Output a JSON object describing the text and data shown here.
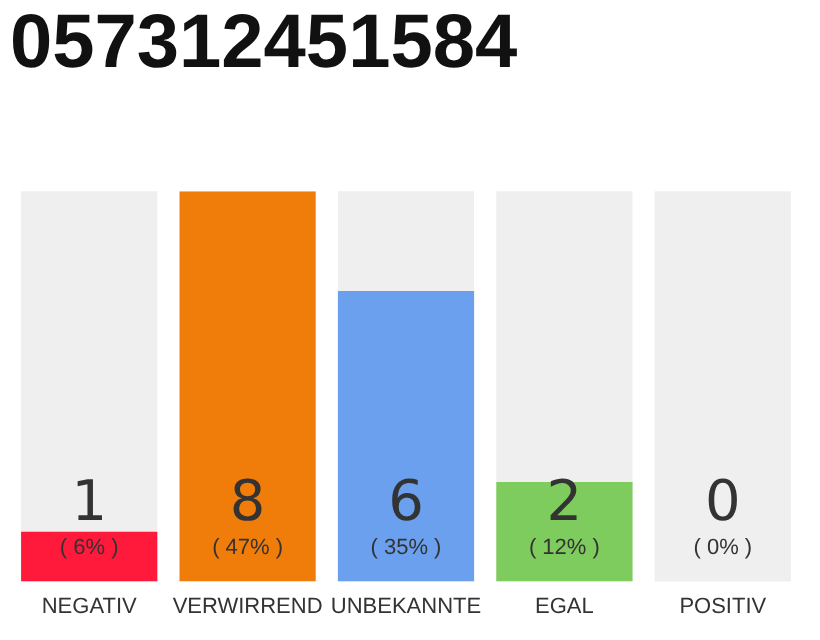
{
  "chart_data": {
    "type": "bar",
    "title": "057312451584",
    "categories": [
      "NEGATIV",
      "VERWIRREND",
      "UNBEKANNTE",
      "EGAL",
      "POSITIV"
    ],
    "values": [
      6,
      47,
      35,
      12,
      0
    ],
    "colors": [
      "#ff1a3c",
      "#f07d0a",
      "#6aa0ee",
      "#7ecb5e",
      "#bbbbbb"
    ],
    "value_labels": [
      "( 6% )",
      "( 47% )",
      "( 35% )",
      "( 12% )",
      "( 0% )"
    ],
    "annotations": [
      "1",
      "8",
      "6",
      "2",
      "0"
    ],
    "bands": [
      {
        "axis": "x",
        "from": "NEGATIV",
        "to": "NEGATIV",
        "color": "#efefef"
      },
      {
        "axis": "x",
        "from": "UNBEKANNTE",
        "to": "UNBEKANNTE",
        "color": "#efefef"
      },
      {
        "axis": "x",
        "from": "EGAL",
        "to": "EGAL",
        "color": "#efefef"
      },
      {
        "axis": "x",
        "from": "POSITIV",
        "to": "POSITIV",
        "color": "#efefef"
      }
    ],
    "tick_labels": "x",
    "grid": false,
    "legend": false
  }
}
